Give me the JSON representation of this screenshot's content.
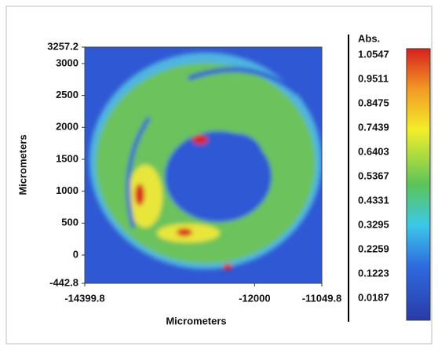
{
  "chart_data": {
    "type": "heatmap",
    "x_label": "Micrometers",
    "y_label": "Micrometers",
    "xlim": [
      -14399.8,
      -11049.8
    ],
    "xticks": [
      -14399.8,
      -12000,
      -11049.8
    ],
    "ylim": [
      -442.8,
      3257.2
    ],
    "yticks": [
      -442.8,
      0,
      500,
      1000,
      1500,
      2000,
      2500,
      3000,
      3257.2
    ],
    "colorbar": {
      "label": "Abs.",
      "ticks": [
        1.0547,
        0.9511,
        0.8475,
        0.7439,
        0.6403,
        0.5367,
        0.4331,
        0.3295,
        0.2259,
        0.1223,
        0.0187
      ]
    }
  }
}
